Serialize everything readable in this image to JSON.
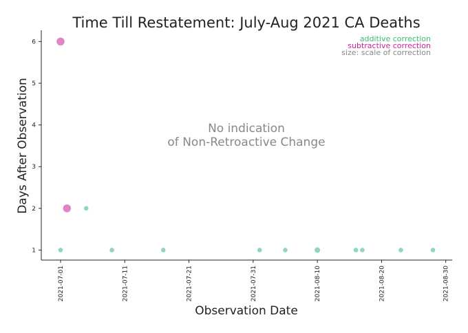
{
  "chart_data": {
    "type": "scatter",
    "title": "Time Till Restatement: July-Aug 2021 CA Deaths",
    "xlabel": "Observation Date",
    "ylabel": "Days After Observation",
    "x_range": [
      "2021-06-28",
      "2021-08-31"
    ],
    "y_range": [
      0.76,
      6.27
    ],
    "x_ticks": [
      "2021-07-01",
      "2021-07-11",
      "2021-07-21",
      "2021-07-31",
      "2021-08-10",
      "2021-08-20",
      "2021-08-30"
    ],
    "y_ticks": [
      1,
      2,
      3,
      4,
      5,
      6
    ],
    "grid": false,
    "annotation": [
      "No indication",
      "of Non-Retroactive Change"
    ],
    "legend": {
      "placement": "top-right",
      "entries": [
        {
          "label": "additive correction",
          "color": "#3dbb78"
        },
        {
          "label": "subtractive correction",
          "color": "#cc2299"
        },
        {
          "label": "size: scale of correction",
          "color": "#888888"
        }
      ]
    },
    "series": [
      {
        "kind": "additive",
        "color": "#7ecfb0",
        "points": [
          {
            "x": "2021-07-01",
            "y": 1,
            "size": 1
          },
          {
            "x": "2021-07-05",
            "y": 2,
            "size": 1
          },
          {
            "x": "2021-07-09",
            "y": 1,
            "size": 1
          },
          {
            "x": "2021-07-17",
            "y": 1,
            "size": 1
          },
          {
            "x": "2021-08-01",
            "y": 1,
            "size": 1
          },
          {
            "x": "2021-08-05",
            "y": 1,
            "size": 1
          },
          {
            "x": "2021-08-10",
            "y": 1,
            "size": 2
          },
          {
            "x": "2021-08-16",
            "y": 1,
            "size": 1
          },
          {
            "x": "2021-08-17",
            "y": 1,
            "size": 1
          },
          {
            "x": "2021-08-23",
            "y": 1,
            "size": 1
          },
          {
            "x": "2021-08-28",
            "y": 1,
            "size": 1
          }
        ]
      },
      {
        "kind": "subtractive",
        "color": "#dc6fbf",
        "points": [
          {
            "x": "2021-07-01",
            "y": 6,
            "size": 6
          },
          {
            "x": "2021-07-02",
            "y": 2,
            "size": 6
          }
        ]
      }
    ]
  }
}
